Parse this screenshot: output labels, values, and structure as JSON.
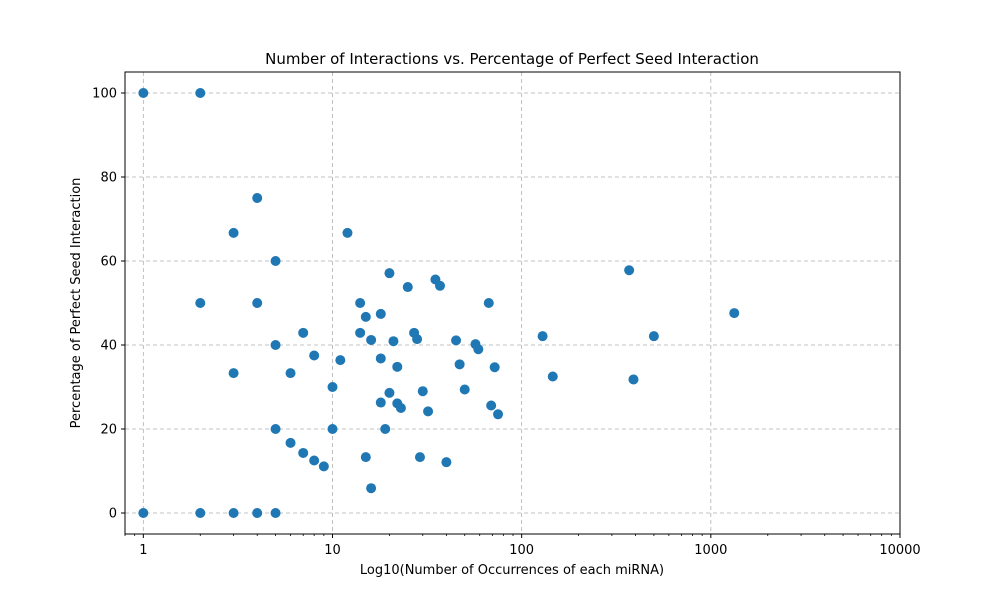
{
  "chart_data": {
    "type": "scatter",
    "title": "Number of Interactions vs. Percentage of Perfect Seed Interaction",
    "xlabel": "Log10(Number of Occurrences of each miRNA)",
    "ylabel": "Percentage of Perfect Seed Interaction",
    "x_scale": "log",
    "xlim": [
      0.8,
      10000
    ],
    "ylim": [
      -5,
      105
    ],
    "xticks": [
      1,
      10,
      100,
      1000,
      10000
    ],
    "xtick_labels": [
      "1",
      "10",
      "100",
      "1000",
      "10000"
    ],
    "yticks": [
      0,
      20,
      40,
      60,
      80,
      100
    ],
    "ytick_labels": [
      "0",
      "20",
      "40",
      "60",
      "80",
      "100"
    ],
    "grid": true,
    "legend": "none",
    "marker_color": "#1f77b4",
    "points": [
      {
        "x": 1,
        "y": 100
      },
      {
        "x": 1,
        "y": 0
      },
      {
        "x": 2,
        "y": 100
      },
      {
        "x": 2,
        "y": 50
      },
      {
        "x": 2,
        "y": 0
      },
      {
        "x": 3,
        "y": 66.7
      },
      {
        "x": 3,
        "y": 33.3
      },
      {
        "x": 3,
        "y": 0
      },
      {
        "x": 4,
        "y": 75
      },
      {
        "x": 4,
        "y": 50
      },
      {
        "x": 4,
        "y": 0
      },
      {
        "x": 5,
        "y": 60
      },
      {
        "x": 5,
        "y": 40
      },
      {
        "x": 5,
        "y": 20
      },
      {
        "x": 5,
        "y": 0
      },
      {
        "x": 6,
        "y": 33.3
      },
      {
        "x": 6,
        "y": 16.7
      },
      {
        "x": 7,
        "y": 42.9
      },
      {
        "x": 7,
        "y": 14.3
      },
      {
        "x": 8,
        "y": 37.5
      },
      {
        "x": 8,
        "y": 12.5
      },
      {
        "x": 9,
        "y": 11.1
      },
      {
        "x": 10,
        "y": 30
      },
      {
        "x": 10,
        "y": 20
      },
      {
        "x": 11,
        "y": 36.4
      },
      {
        "x": 12,
        "y": 66.7
      },
      {
        "x": 14,
        "y": 50
      },
      {
        "x": 14,
        "y": 42.9
      },
      {
        "x": 15,
        "y": 46.7
      },
      {
        "x": 15,
        "y": 13.3
      },
      {
        "x": 16,
        "y": 41.2
      },
      {
        "x": 16,
        "y": 5.9
      },
      {
        "x": 18,
        "y": 47.4
      },
      {
        "x": 18,
        "y": 36.8
      },
      {
        "x": 18,
        "y": 26.3
      },
      {
        "x": 19,
        "y": 20
      },
      {
        "x": 20,
        "y": 57.1
      },
      {
        "x": 20,
        "y": 28.6
      },
      {
        "x": 21,
        "y": 40.9
      },
      {
        "x": 22,
        "y": 34.8
      },
      {
        "x": 22,
        "y": 26.1
      },
      {
        "x": 23,
        "y": 25
      },
      {
        "x": 25,
        "y": 53.8
      },
      {
        "x": 27,
        "y": 42.9
      },
      {
        "x": 28,
        "y": 41.4
      },
      {
        "x": 29,
        "y": 13.3
      },
      {
        "x": 30,
        "y": 29
      },
      {
        "x": 32,
        "y": 24.2
      },
      {
        "x": 35,
        "y": 55.6
      },
      {
        "x": 37,
        "y": 54.1
      },
      {
        "x": 40,
        "y": 12.1
      },
      {
        "x": 45,
        "y": 41.1
      },
      {
        "x": 47,
        "y": 35.4
      },
      {
        "x": 50,
        "y": 29.4
      },
      {
        "x": 57,
        "y": 40.2
      },
      {
        "x": 59,
        "y": 39
      },
      {
        "x": 67,
        "y": 50
      },
      {
        "x": 69,
        "y": 25.6
      },
      {
        "x": 72,
        "y": 34.7
      },
      {
        "x": 75,
        "y": 23.5
      },
      {
        "x": 129,
        "y": 42.1
      },
      {
        "x": 146,
        "y": 32.5
      },
      {
        "x": 370,
        "y": 57.8
      },
      {
        "x": 390,
        "y": 31.8
      },
      {
        "x": 500,
        "y": 42.1
      },
      {
        "x": 1330,
        "y": 47.6
      }
    ]
  }
}
